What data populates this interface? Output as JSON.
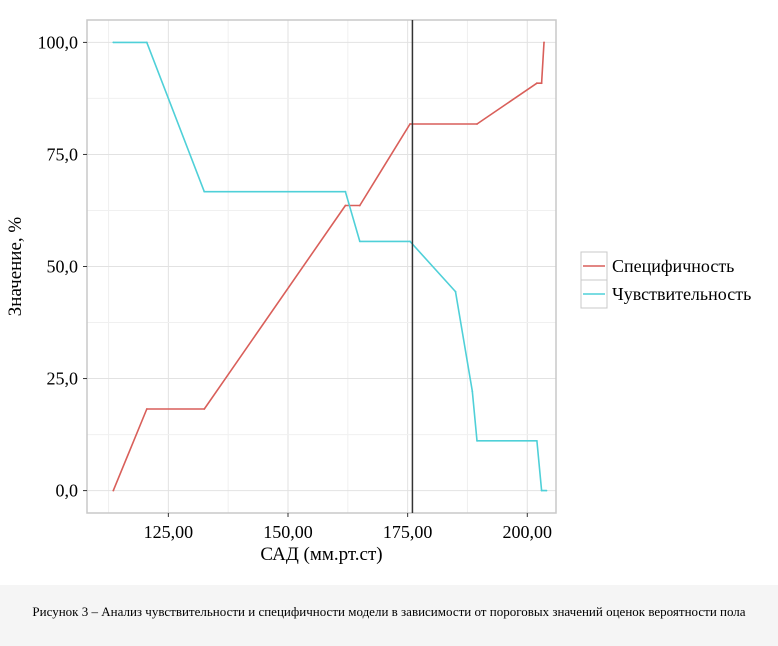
{
  "chart_data": {
    "type": "line",
    "title": "",
    "xlabel": "САД (мм.рт.ст)",
    "ylabel": "Значение, %",
    "xlim": [
      108,
      206
    ],
    "ylim": [
      -5,
      105
    ],
    "x_ticks": [
      125,
      150,
      175,
      200
    ],
    "x_tick_labels": [
      "125,00",
      "150,00",
      "175,00",
      "200,00"
    ],
    "y_ticks": [
      0,
      25,
      50,
      75,
      100
    ],
    "y_tick_labels": [
      "0,0",
      "25,0",
      "50,0",
      "75,0",
      "100,0"
    ],
    "grid": true,
    "legend_position": "right",
    "cutoff_line_x": 176,
    "series": [
      {
        "name": "Специфичность",
        "color": "#d95f5a",
        "points": [
          [
            113.5,
            0
          ],
          [
            120.5,
            18.2
          ],
          [
            132.5,
            18.2
          ],
          [
            162,
            63.6
          ],
          [
            165,
            63.6
          ],
          [
            175.5,
            81.8
          ],
          [
            189.5,
            81.8
          ],
          [
            202,
            90.9
          ],
          [
            203,
            90.9
          ],
          [
            203.5,
            100
          ]
        ]
      },
      {
        "name": "Чувствительность",
        "color": "#4fd0d8",
        "points": [
          [
            113.5,
            100
          ],
          [
            120.5,
            100
          ],
          [
            132.5,
            66.7
          ],
          [
            162,
            66.7
          ],
          [
            165,
            55.6
          ],
          [
            175.5,
            55.6
          ],
          [
            185,
            44.4
          ],
          [
            188.5,
            22.2
          ],
          [
            189.5,
            11.1
          ],
          [
            202,
            11.1
          ],
          [
            203,
            0
          ],
          [
            204,
            0
          ]
        ]
      }
    ]
  },
  "caption": {
    "text": "Рисунок 3 – Анализ чувствительности и специфичности модели в зависимости от пороговых значений оценок вероятности пола"
  }
}
